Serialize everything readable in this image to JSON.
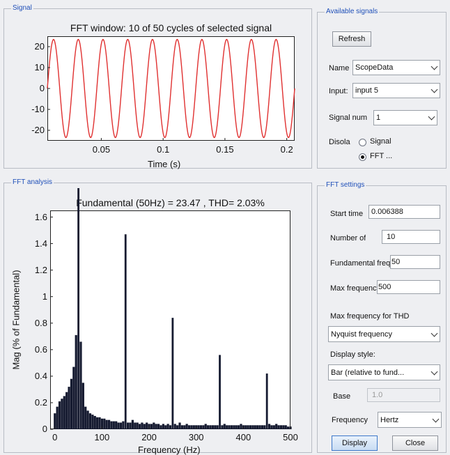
{
  "signal_panel": {
    "title": "Signal",
    "plot_title": "FFT window: 10 of 50 cycles of selected signal",
    "xlabel": "Time (s)"
  },
  "available_panel": {
    "title": "Available signals",
    "refresh_label": "Refresh",
    "name_label": "Name",
    "name_value": "ScopeData",
    "input_label": "Input:",
    "input_value": "input 5",
    "signal_num_label": "Signal num",
    "signal_num_value": "1",
    "display_label": "Disola",
    "radio_signal": "Signal",
    "radio_fft": "FFT ...",
    "selected_radio": "fft"
  },
  "fft_panel": {
    "title": "FFT analysis",
    "plot_title": "Fundamental (50Hz) = 23.47 , THD= 2.03%",
    "xlabel": "Frequency (Hz)",
    "ylabel": "Mag (% of Fundamental)"
  },
  "settings_panel": {
    "title": "FFT settings",
    "start_time_label": "Start time",
    "start_time_value": "0.006388",
    "num_cycles_label": "Number of",
    "num_cycles_value": "10",
    "fund_freq_label": "Fundamental freque",
    "fund_freq_value": "50",
    "max_freq_label": "Max frequency",
    "max_freq_value": "500",
    "max_thd_label": "Max frequency for THD",
    "max_thd_value": "Nyquist frequency",
    "display_style_label": "Display style:",
    "display_style_value": "Bar (relative to fund...",
    "base_label": "Base",
    "base_value": "1.0",
    "frequency_label": "Frequency",
    "frequency_value": "Hertz",
    "display_button": "Display",
    "close_button": "Close"
  },
  "chart_data": [
    {
      "type": "line",
      "title": "FFT window: 10 of 50 cycles of selected signal",
      "xlabel": "Time (s)",
      "ylabel": "",
      "xlim": [
        0.006388,
        0.206388
      ],
      "ylim": [
        -25,
        25
      ],
      "x_ticks": [
        0.05,
        0.1,
        0.15,
        0.2
      ],
      "x_tick_labels": [
        "0.05",
        "0.1",
        "0.15",
        "0.2"
      ],
      "y_ticks": [
        -20,
        -10,
        0,
        10,
        20
      ],
      "y_tick_labels": [
        "-20",
        "-10",
        "0",
        "10",
        "20"
      ],
      "series": [
        {
          "amplitude": 23.47,
          "frequency_hz": 50,
          "color": "#e03030"
        }
      ]
    },
    {
      "type": "bar",
      "title": "Fundamental (50Hz) = 23.47 , THD= 2.03%",
      "xlabel": "Frequency (Hz)",
      "ylabel": "Mag (% of Fundamental)",
      "xlim": [
        -10,
        500
      ],
      "ylim": [
        0,
        1.65
      ],
      "x_ticks": [
        0,
        100,
        200,
        300,
        400,
        500
      ],
      "x_tick_labels": [
        "0",
        "100",
        "200",
        "300",
        "400",
        "500"
      ],
      "y_ticks": [
        0,
        0.2,
        0.4,
        0.6,
        0.8,
        1,
        1.2,
        1.4,
        1.6
      ],
      "y_tick_labels": [
        "0",
        "0.2",
        "0.4",
        "0.6",
        "0.8",
        "1",
        "1.2",
        "1.4",
        "1.6"
      ],
      "bar_color": "#151a30",
      "main_bars": [
        {
          "freq": 50,
          "value": 100
        },
        {
          "freq": 150,
          "value": 1.47
        },
        {
          "freq": 250,
          "value": 0.84
        },
        {
          "freq": 350,
          "value": 0.56
        },
        {
          "freq": 450,
          "value": 0.42
        }
      ],
      "small_bars": [
        {
          "freq": 0,
          "value": 0.12
        },
        {
          "freq": 5,
          "value": 0.17
        },
        {
          "freq": 10,
          "value": 0.21
        },
        {
          "freq": 15,
          "value": 0.23
        },
        {
          "freq": 20,
          "value": 0.25
        },
        {
          "freq": 25,
          "value": 0.28
        },
        {
          "freq": 30,
          "value": 0.32
        },
        {
          "freq": 35,
          "value": 0.38
        },
        {
          "freq": 40,
          "value": 0.47
        },
        {
          "freq": 45,
          "value": 0.71
        },
        {
          "freq": 55,
          "value": 0.66
        },
        {
          "freq": 60,
          "value": 0.35
        },
        {
          "freq": 65,
          "value": 0.17
        },
        {
          "freq": 70,
          "value": 0.14
        },
        {
          "freq": 75,
          "value": 0.12
        },
        {
          "freq": 80,
          "value": 0.11
        },
        {
          "freq": 85,
          "value": 0.1
        },
        {
          "freq": 90,
          "value": 0.09
        },
        {
          "freq": 95,
          "value": 0.09
        },
        {
          "freq": 100,
          "value": 0.08
        },
        {
          "freq": 105,
          "value": 0.08
        },
        {
          "freq": 110,
          "value": 0.07
        },
        {
          "freq": 115,
          "value": 0.07
        },
        {
          "freq": 120,
          "value": 0.06
        },
        {
          "freq": 125,
          "value": 0.06
        },
        {
          "freq": 130,
          "value": 0.06
        },
        {
          "freq": 135,
          "value": 0.05
        },
        {
          "freq": 140,
          "value": 0.05
        },
        {
          "freq": 145,
          "value": 0.06
        },
        {
          "freq": 155,
          "value": 0.05
        },
        {
          "freq": 160,
          "value": 0.05
        },
        {
          "freq": 165,
          "value": 0.07
        },
        {
          "freq": 170,
          "value": 0.05
        },
        {
          "freq": 175,
          "value": 0.05
        },
        {
          "freq": 180,
          "value": 0.04
        },
        {
          "freq": 185,
          "value": 0.05
        },
        {
          "freq": 190,
          "value": 0.04
        },
        {
          "freq": 195,
          "value": 0.05
        },
        {
          "freq": 200,
          "value": 0.04
        },
        {
          "freq": 205,
          "value": 0.04
        },
        {
          "freq": 210,
          "value": 0.05
        },
        {
          "freq": 215,
          "value": 0.04
        },
        {
          "freq": 220,
          "value": 0.04
        },
        {
          "freq": 225,
          "value": 0.03
        },
        {
          "freq": 230,
          "value": 0.04
        },
        {
          "freq": 235,
          "value": 0.03
        },
        {
          "freq": 240,
          "value": 0.04
        },
        {
          "freq": 245,
          "value": 0.03
        },
        {
          "freq": 255,
          "value": 0.04
        },
        {
          "freq": 260,
          "value": 0.03
        },
        {
          "freq": 265,
          "value": 0.05
        },
        {
          "freq": 270,
          "value": 0.03
        },
        {
          "freq": 275,
          "value": 0.03
        },
        {
          "freq": 280,
          "value": 0.04
        },
        {
          "freq": 285,
          "value": 0.03
        },
        {
          "freq": 290,
          "value": 0.03
        },
        {
          "freq": 295,
          "value": 0.03
        },
        {
          "freq": 300,
          "value": 0.03
        },
        {
          "freq": 305,
          "value": 0.03
        },
        {
          "freq": 310,
          "value": 0.03
        },
        {
          "freq": 315,
          "value": 0.03
        },
        {
          "freq": 320,
          "value": 0.04
        },
        {
          "freq": 325,
          "value": 0.03
        },
        {
          "freq": 330,
          "value": 0.03
        },
        {
          "freq": 335,
          "value": 0.03
        },
        {
          "freq": 340,
          "value": 0.03
        },
        {
          "freq": 345,
          "value": 0.03
        },
        {
          "freq": 355,
          "value": 0.03
        },
        {
          "freq": 360,
          "value": 0.04
        },
        {
          "freq": 365,
          "value": 0.03
        },
        {
          "freq": 370,
          "value": 0.03
        },
        {
          "freq": 375,
          "value": 0.03
        },
        {
          "freq": 380,
          "value": 0.03
        },
        {
          "freq": 385,
          "value": 0.03
        },
        {
          "freq": 390,
          "value": 0.03
        },
        {
          "freq": 395,
          "value": 0.04
        },
        {
          "freq": 400,
          "value": 0.03
        },
        {
          "freq": 405,
          "value": 0.03
        },
        {
          "freq": 410,
          "value": 0.03
        },
        {
          "freq": 415,
          "value": 0.03
        },
        {
          "freq": 420,
          "value": 0.03
        },
        {
          "freq": 425,
          "value": 0.03
        },
        {
          "freq": 430,
          "value": 0.03
        },
        {
          "freq": 435,
          "value": 0.03
        },
        {
          "freq": 440,
          "value": 0.03
        },
        {
          "freq": 445,
          "value": 0.03
        },
        {
          "freq": 455,
          "value": 0.04
        },
        {
          "freq": 460,
          "value": 0.03
        },
        {
          "freq": 465,
          "value": 0.03
        },
        {
          "freq": 470,
          "value": 0.04
        },
        {
          "freq": 475,
          "value": 0.03
        },
        {
          "freq": 480,
          "value": 0.03
        },
        {
          "freq": 485,
          "value": 0.03
        },
        {
          "freq": 490,
          "value": 0.03
        },
        {
          "freq": 495,
          "value": 0.02
        },
        {
          "freq": 500,
          "value": 0.02
        }
      ]
    }
  ]
}
